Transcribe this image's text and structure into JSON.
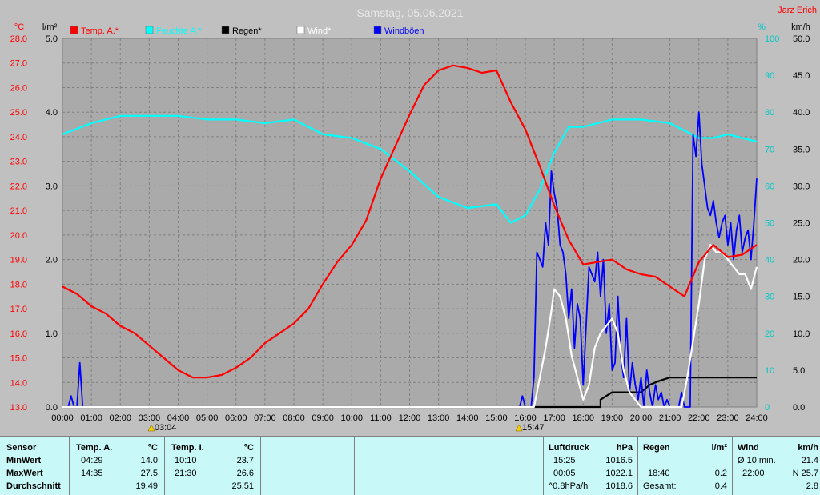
{
  "chart_data": {
    "type": "line",
    "title": "Samstag, 05.06.2021",
    "author": "Jarz Erich",
    "x_ticks": [
      "00:00",
      "01:00",
      "02:00",
      "03:00",
      "04:00",
      "05:00",
      "06:00",
      "07:00",
      "08:00",
      "09:00",
      "10:00",
      "11:00",
      "12:00",
      "13:00",
      "14:00",
      "15:00",
      "16:00",
      "17:00",
      "18:00",
      "19:00",
      "20:00",
      "21:00",
      "22:00",
      "23:00",
      "24:00"
    ],
    "xlim": [
      0,
      24
    ],
    "axes": {
      "temp": {
        "unit": "°C",
        "lim": [
          13.0,
          28.0
        ],
        "ticks": [
          "13.0",
          "14.0",
          "15.0",
          "16.0",
          "17.0",
          "18.0",
          "19.0",
          "20.0",
          "21.0",
          "22.0",
          "23.0",
          "24.0",
          "25.0",
          "26.0",
          "27.0",
          "28.0"
        ],
        "color": "#ff0000"
      },
      "rain": {
        "unit": "l/m²",
        "lim": [
          0,
          5.0
        ],
        "ticks": [
          "0.0",
          "1.0",
          "2.0",
          "3.0",
          "4.0",
          "5.0"
        ],
        "color": "#000000"
      },
      "humidity": {
        "unit": "%",
        "lim": [
          0,
          100
        ],
        "ticks": [
          "0",
          "10",
          "20",
          "30",
          "40",
          "50",
          "60",
          "70",
          "80",
          "90",
          "100"
        ],
        "color": "#00c8c8"
      },
      "wind": {
        "unit": "km/h",
        "lim": [
          0,
          50.0
        ],
        "ticks": [
          "0.0",
          "5.0",
          "10.0",
          "15.0",
          "20.0",
          "25.0",
          "30.0",
          "35.0",
          "40.0",
          "45.0",
          "50.0"
        ],
        "color": "#000000"
      }
    },
    "sun_markers": [
      {
        "time": 3.07,
        "label": "03:04"
      },
      {
        "time": 15.78,
        "label": "15:47"
      }
    ],
    "legend": [
      {
        "name": "Temp. A.*",
        "color": "#ff0000"
      },
      {
        "name": "Feuchte A.*",
        "color": "#00ffff"
      },
      {
        "name": "Regen*",
        "color": "#000000"
      },
      {
        "name": "Wind*",
        "color": "#ffffff"
      },
      {
        "name": "Windböen",
        "color": "#0000ff"
      }
    ],
    "series": [
      {
        "name": "Temp. A.*",
        "axis": "temp",
        "color": "#ff0000",
        "x": [
          0,
          0.5,
          1,
          1.5,
          2,
          2.5,
          3,
          3.5,
          4,
          4.5,
          5,
          5.5,
          6,
          6.5,
          7,
          7.5,
          8,
          8.5,
          9,
          9.5,
          10,
          10.5,
          11,
          11.5,
          12,
          12.5,
          13,
          13.5,
          14,
          14.5,
          15,
          15.5,
          16,
          16.5,
          17,
          17.5,
          18,
          18.5,
          19,
          19.5,
          20,
          20.5,
          21,
          21.5,
          22,
          22.5,
          23,
          23.5,
          24
        ],
        "y": [
          17.9,
          17.6,
          17.1,
          16.8,
          16.3,
          16.0,
          15.5,
          15.0,
          14.5,
          14.2,
          14.2,
          14.3,
          14.6,
          15.0,
          15.6,
          16.0,
          16.4,
          17.0,
          18.0,
          18.9,
          19.6,
          20.6,
          22.3,
          23.6,
          24.9,
          26.1,
          26.7,
          26.9,
          26.8,
          26.6,
          26.7,
          25.4,
          24.3,
          22.8,
          21.2,
          19.8,
          18.8,
          18.9,
          19.0,
          18.6,
          18.4,
          18.3,
          17.9,
          17.5,
          18.9,
          19.6,
          19.1,
          19.2,
          19.6
        ]
      },
      {
        "name": "Feuchte A.*",
        "axis": "humidity",
        "color": "#00ffff",
        "x": [
          0,
          1,
          2,
          3,
          4,
          5,
          6,
          7,
          8,
          9,
          10,
          11,
          12,
          13,
          14,
          15,
          15.5,
          16,
          16.5,
          17,
          17.5,
          18,
          19,
          20,
          21,
          22,
          22.5,
          23,
          23.5,
          24
        ],
        "y": [
          74,
          77,
          79,
          79,
          79,
          78,
          78,
          77,
          78,
          74,
          73,
          70,
          64,
          57,
          54,
          55,
          50,
          52,
          59,
          69,
          76,
          76,
          78,
          78,
          77,
          73,
          73,
          74,
          73,
          72
        ]
      },
      {
        "name": "Regen*",
        "axis": "rain",
        "color": "#000000",
        "x": [
          0,
          18.6,
          18.6,
          18.8,
          19.0,
          19.5,
          20.0,
          20.3,
          20.6,
          21.0,
          21.5,
          22.0,
          23.0,
          24.0
        ],
        "y": [
          0,
          0,
          0.1,
          0.15,
          0.2,
          0.2,
          0.2,
          0.3,
          0.35,
          0.4,
          0.4,
          0.4,
          0.4,
          0.4
        ]
      },
      {
        "name": "Wind*",
        "axis": "wind",
        "color": "#ffffff",
        "x": [
          0,
          16.3,
          16.5,
          16.7,
          16.9,
          17.0,
          17.2,
          17.4,
          17.6,
          17.8,
          18.0,
          18.2,
          18.4,
          18.6,
          18.8,
          19.0,
          19.2,
          19.4,
          19.6,
          20.0,
          20.5,
          21.0,
          21.4,
          21.6,
          21.8,
          22.0,
          22.2,
          22.4,
          22.6,
          22.8,
          23.0,
          23.2,
          23.4,
          23.6,
          23.8,
          24.0
        ],
        "y": [
          0,
          0,
          4,
          8,
          13,
          16,
          15,
          12,
          7,
          4,
          1,
          3,
          8,
          10,
          11,
          12,
          10,
          5,
          2,
          0,
          0,
          0,
          0,
          4,
          9,
          14,
          20,
          22,
          21,
          21,
          20,
          19,
          18,
          18,
          16,
          19
        ]
      },
      {
        "name": "Windböen",
        "axis": "wind",
        "color": "#0000ff",
        "x": [
          0,
          0.2,
          0.3,
          0.4,
          0.5,
          0.55,
          0.6,
          0.65,
          0.7,
          15.8,
          15.9,
          16.0,
          16.2,
          16.3,
          16.4,
          16.5,
          16.6,
          16.7,
          16.8,
          16.9,
          17.0,
          17.1,
          17.2,
          17.3,
          17.4,
          17.5,
          17.6,
          17.7,
          17.8,
          17.9,
          18.0,
          18.2,
          18.4,
          18.5,
          18.6,
          18.7,
          18.8,
          18.9,
          19.0,
          19.1,
          19.2,
          19.3,
          19.4,
          19.5,
          19.6,
          19.7,
          19.8,
          19.9,
          20.0,
          20.1,
          20.2,
          20.3,
          20.4,
          20.5,
          20.6,
          20.7,
          20.8,
          20.9,
          21.0,
          21.3,
          21.4,
          21.5,
          21.7,
          21.8,
          21.9,
          22.0,
          22.1,
          22.2,
          22.3,
          22.4,
          22.5,
          22.6,
          22.7,
          22.8,
          22.9,
          23.0,
          23.1,
          23.2,
          23.3,
          23.4,
          23.5,
          23.6,
          23.7,
          23.8,
          23.9,
          24.0
        ],
        "y": [
          0,
          0,
          1.5,
          0,
          0,
          3,
          6,
          3,
          0,
          0,
          1.5,
          0,
          0,
          4,
          21,
          20,
          19,
          25,
          22,
          32,
          29,
          27,
          22,
          21,
          18,
          12,
          16,
          8,
          14,
          12,
          3,
          19,
          17,
          21,
          15,
          20,
          10,
          14,
          5,
          6,
          15,
          7,
          4,
          12,
          2,
          6,
          3,
          1,
          4,
          0,
          5,
          2,
          0,
          3,
          1,
          2,
          0,
          1,
          0,
          0,
          2,
          0,
          0,
          37,
          34,
          40,
          33,
          30,
          27,
          26,
          28,
          25,
          23,
          25,
          26,
          22,
          25,
          20,
          24,
          26,
          21,
          23,
          24,
          20,
          25,
          31
        ]
      }
    ]
  },
  "table": {
    "sensor": {
      "header": "Sensor",
      "rows": [
        "MinWert",
        "MaxWert",
        "Durchschnitt"
      ]
    },
    "temp_a": {
      "header": "Temp. A.",
      "unit": "°C",
      "min_time": "04:29",
      "min": "14.0",
      "max_time": "14:35",
      "max": "27.5",
      "avg": "19.49"
    },
    "temp_i": {
      "header": "Temp. I.",
      "unit": "°C",
      "min_time": "10:10",
      "min": "23.7",
      "max_time": "21:30",
      "max": "26.6",
      "avg": "25.51"
    },
    "pressure": {
      "header": "Luftdruck",
      "unit": "hPa",
      "min_time": "15:25",
      "min": "1016.5",
      "max_time": "00:05",
      "max": "1022.1",
      "avg_label": "^0.8hPa/h",
      "avg": "1018.6"
    },
    "rain": {
      "header": "Regen",
      "unit": "l/m²",
      "max_time": "18:40",
      "max": "0.2",
      "total_label": "Gesamt:",
      "total": "0.4"
    },
    "wind": {
      "header": "Wind",
      "unit": "km/h",
      "min_label": "Ø 10 min.",
      "min": "21.4",
      "max_time": "22:00",
      "max": "N 25.7",
      "avg": "2.8"
    }
  }
}
